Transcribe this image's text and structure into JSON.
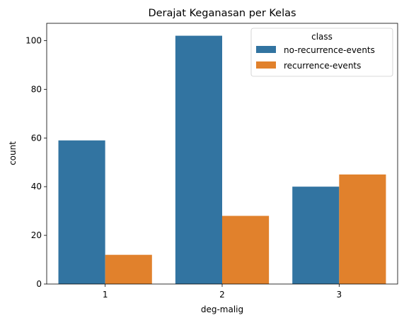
{
  "chart_data": {
    "type": "bar",
    "title": "Derajat Keganasan per Kelas",
    "xlabel": "deg-malig",
    "ylabel": "count",
    "categories": [
      "1",
      "2",
      "3"
    ],
    "series": [
      {
        "name": "no-recurrence-events",
        "values": [
          59,
          102,
          40
        ],
        "color": "#3274a1"
      },
      {
        "name": "recurrence-events",
        "values": [
          12,
          28,
          45
        ],
        "color": "#e1812c"
      }
    ],
    "ylim": [
      0,
      107.1
    ],
    "yticks": [
      0,
      20,
      40,
      60,
      80,
      100
    ],
    "legend": {
      "title": "class",
      "placement": "top-right"
    },
    "grid": false
  }
}
